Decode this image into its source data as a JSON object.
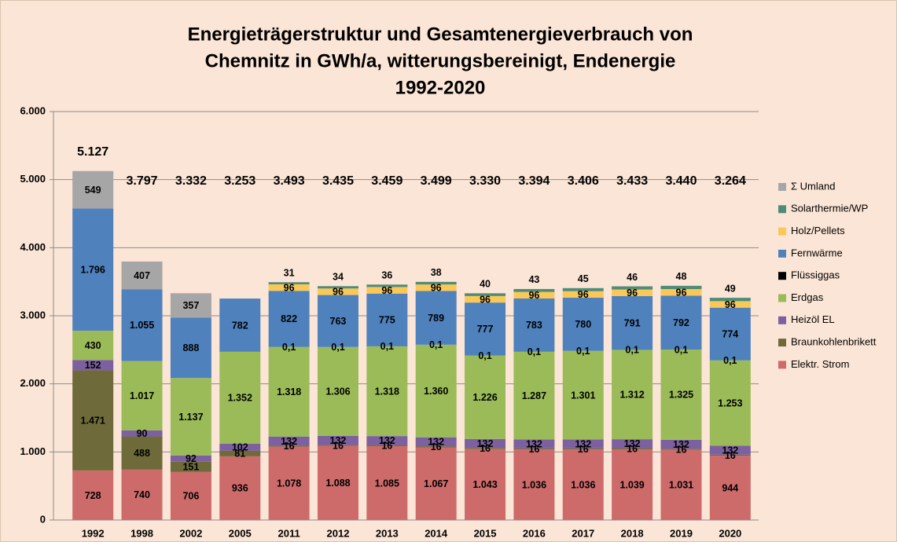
{
  "chart_data": {
    "type": "stacked_bar",
    "title": [
      "Energieträgerstruktur und Gesamtenergieverbrauch von",
      "Chemnitz in GWh/a, witterungsbereinigt, Endenergie",
      "1992-2020"
    ],
    "categories": [
      "1992",
      "1998",
      "2002",
      "2005",
      "2011",
      "2012",
      "2013",
      "2014",
      "2015",
      "2016",
      "2017",
      "2018",
      "2019",
      "2020"
    ],
    "series": [
      {
        "name": "Elektr. Strom",
        "color": "#cd6b6b",
        "values": [
          728,
          740,
          706,
          936,
          1078,
          1088,
          1085,
          1067,
          1043,
          1036,
          1036,
          1039,
          1031,
          944
        ],
        "value_labels": [
          "728",
          "740",
          "706",
          "936",
          "1.078",
          "1.088",
          "1.085",
          "1.067",
          "1.043",
          "1.036",
          "1.036",
          "1.039",
          "1.031",
          "944"
        ]
      },
      {
        "name": "Braunkohlenbrikett",
        "color": "#6e6a3a",
        "values": [
          1471,
          488,
          151,
          81,
          16,
          16,
          16,
          16,
          16,
          16,
          16,
          16,
          16,
          16
        ],
        "value_labels": [
          "1.471",
          "488",
          "151",
          "81",
          "16",
          "16",
          "16",
          "16",
          "16",
          "16",
          "16",
          "16",
          "16",
          "16"
        ]
      },
      {
        "name": "Heizöl EL",
        "color": "#7d60a0",
        "values": [
          152,
          90,
          92,
          102,
          132,
          132,
          132,
          132,
          132,
          132,
          132,
          132,
          132,
          132
        ]
      },
      {
        "name": "Erdgas",
        "color": "#9bbb59",
        "values": [
          430,
          1017,
          1137,
          1352,
          1318,
          1306,
          1318,
          1360,
          1226,
          1287,
          1301,
          1312,
          1325,
          1253
        ],
        "value_labels": [
          "430",
          "1.017",
          "1.137",
          "1.352",
          "1.318",
          "1.306",
          "1.318",
          "1.360",
          "1.226",
          "1.287",
          "1.301",
          "1.312",
          "1.325",
          "1.253"
        ]
      },
      {
        "name": "Flüssiggas",
        "color": "#000000",
        "values": [
          null,
          null,
          null,
          null,
          0.1,
          0.1,
          0.1,
          0.1,
          0.1,
          0.1,
          0.1,
          0.1,
          0.1,
          0.1
        ],
        "value_labels": [
          null,
          null,
          null,
          null,
          "0,1",
          "0,1",
          "0,1",
          "0,1",
          "0,1",
          "0,1",
          "0,1",
          "0,1",
          "0,1",
          "0,1"
        ]
      },
      {
        "name": "Fernwärme",
        "color": "#4f81bd",
        "values": [
          1796,
          1055,
          888,
          782,
          822,
          763,
          775,
          789,
          777,
          783,
          780,
          791,
          792,
          774
        ],
        "value_labels": [
          "1.796",
          "1.055",
          "888",
          "782",
          "822",
          "763",
          "775",
          "789",
          "777",
          "783",
          "780",
          "791",
          "792",
          "774"
        ]
      },
      {
        "name": "Holz/Pellets",
        "color": "#fac858",
        "values": [
          null,
          null,
          null,
          null,
          96,
          96,
          96,
          96,
          96,
          96,
          96,
          96,
          96,
          96
        ]
      },
      {
        "name": "Solarthermie/WP",
        "color": "#4e8c78",
        "values": [
          null,
          null,
          null,
          null,
          31,
          34,
          36,
          38,
          40,
          43,
          45,
          46,
          48,
          49
        ]
      },
      {
        "name": "Σ Umland",
        "color": "#a6a6a6",
        "values": [
          549,
          407,
          357,
          null,
          null,
          null,
          null,
          null,
          null,
          null,
          null,
          null,
          null,
          null
        ]
      }
    ],
    "totals": {
      "values": [
        5127,
        3797,
        3332,
        3253,
        3493,
        3435,
        3459,
        3499,
        3330,
        3394,
        3406,
        3433,
        3440,
        3264
      ],
      "labels": [
        "5.127",
        "3.797",
        "3.332",
        "3.253",
        "3.493",
        "3.435",
        "3.459",
        "3.499",
        "3.330",
        "3.394",
        "3.406",
        "3.433",
        "3.440",
        "3.264"
      ]
    },
    "ylim": [
      0,
      6000
    ],
    "yticks": [
      0,
      {
        "value": 1000,
        "label": "1.000"
      },
      {
        "value": 2000,
        "label": "2.000"
      },
      {
        "value": 3000,
        "label": "3.000"
      },
      {
        "value": 4000,
        "label": "4.000"
      },
      {
        "value": 5000,
        "label": "5.000"
      },
      {
        "value": 6000,
        "label": "6.000"
      }
    ],
    "grid": true,
    "legend": "right"
  }
}
